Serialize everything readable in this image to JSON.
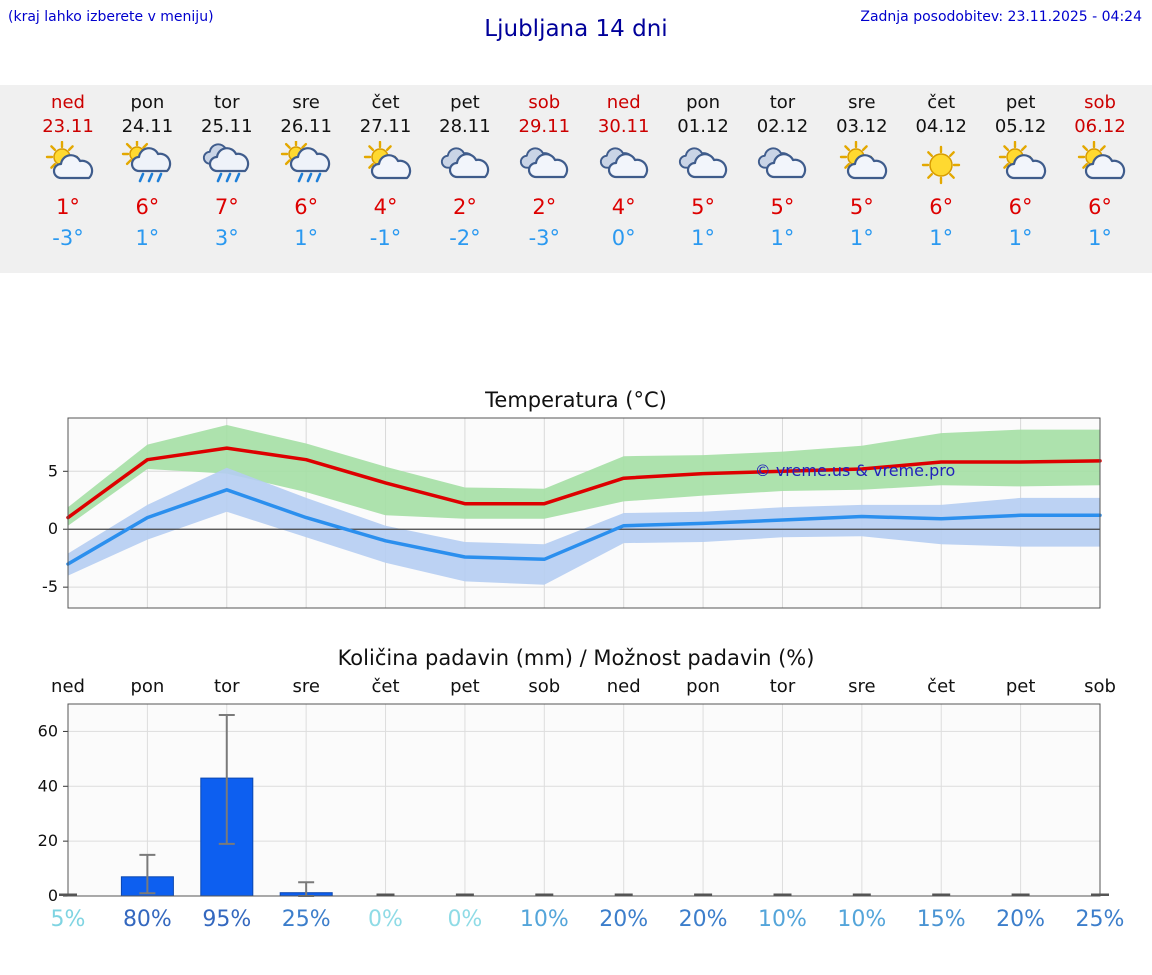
{
  "header": {
    "note": "(kraj lahko izberete v meniju)",
    "title": "Ljubljana 14 dni",
    "updated": "Zadnja posodobitev: 23.11.2025 - 04:24"
  },
  "colors": {
    "weekend": "#cc0000",
    "weekday": "#111111",
    "high_temp": "#dd0000",
    "low_temp": "#2b99f0",
    "header_blue": "#0000cd",
    "watermark_blue": "#2222bb"
  },
  "days": [
    {
      "name": "ned",
      "date": "23.11",
      "weekend": true,
      "icon": "sun-cloud",
      "high": "1°",
      "low": "-3°"
    },
    {
      "name": "pon",
      "date": "24.11",
      "weekend": false,
      "icon": "rain-sun",
      "high": "6°",
      "low": "1°"
    },
    {
      "name": "tor",
      "date": "25.11",
      "weekend": false,
      "icon": "rain",
      "high": "7°",
      "low": "3°"
    },
    {
      "name": "sre",
      "date": "26.11",
      "weekend": false,
      "icon": "rain-sun",
      "high": "6°",
      "low": "1°"
    },
    {
      "name": "čet",
      "date": "27.11",
      "weekend": false,
      "icon": "sun-cloud",
      "high": "4°",
      "low": "-1°"
    },
    {
      "name": "pet",
      "date": "28.11",
      "weekend": false,
      "icon": "cloudy",
      "high": "2°",
      "low": "-2°"
    },
    {
      "name": "sob",
      "date": "29.11",
      "weekend": true,
      "icon": "cloudy",
      "high": "2°",
      "low": "-3°"
    },
    {
      "name": "ned",
      "date": "30.11",
      "weekend": true,
      "icon": "cloudy",
      "high": "4°",
      "low": "0°"
    },
    {
      "name": "pon",
      "date": "01.12",
      "weekend": false,
      "icon": "cloudy",
      "high": "5°",
      "low": "1°"
    },
    {
      "name": "tor",
      "date": "02.12",
      "weekend": false,
      "icon": "cloudy",
      "high": "5°",
      "low": "1°"
    },
    {
      "name": "sre",
      "date": "03.12",
      "weekend": false,
      "icon": "sun-cloud",
      "high": "5°",
      "low": "1°"
    },
    {
      "name": "čet",
      "date": "04.12",
      "weekend": false,
      "icon": "sun",
      "high": "6°",
      "low": "1°"
    },
    {
      "name": "pet",
      "date": "05.12",
      "weekend": false,
      "icon": "sun-cloud",
      "high": "6°",
      "low": "1°"
    },
    {
      "name": "sob",
      "date": "06.12",
      "weekend": true,
      "icon": "sun-cloud",
      "high": "6°",
      "low": "1°"
    }
  ],
  "chart_data": [
    {
      "type": "line",
      "title": "Temperatura (°C)",
      "categories": [
        "ned",
        "pon",
        "tor",
        "sre",
        "čet",
        "pet",
        "sob",
        "ned",
        "pon",
        "tor",
        "sre",
        "čet",
        "pet",
        "sob"
      ],
      "ylim": [
        -6.8,
        9.6
      ],
      "yticks": [
        -5,
        0,
        5
      ],
      "grid": true,
      "watermark": "© vreme.us & vreme.pro",
      "series": [
        {
          "name": "max",
          "color": "#dd0000",
          "values": [
            1,
            6,
            7,
            6,
            4,
            2.2,
            2.2,
            4.4,
            4.8,
            5,
            5.2,
            5.8,
            5.8,
            5.9
          ]
        },
        {
          "name": "min",
          "color": "#2b8fee",
          "values": [
            -3,
            1,
            3.4,
            1,
            -1,
            -2.4,
            -2.6,
            0.3,
            0.5,
            0.8,
            1.1,
            0.9,
            1.2,
            1.2
          ]
        }
      ],
      "bands": [
        {
          "name": "max-range",
          "color": "#a4dfa4",
          "upper": [
            1.9,
            7.3,
            9.0,
            7.4,
            5.4,
            3.6,
            3.5,
            6.3,
            6.4,
            6.7,
            7.2,
            8.3,
            8.6,
            8.6
          ],
          "lower": [
            0.3,
            5.2,
            4.8,
            3.2,
            1.2,
            0.9,
            0.9,
            2.4,
            2.9,
            3.3,
            3.4,
            3.8,
            3.7,
            3.8
          ]
        },
        {
          "name": "min-range",
          "color": "#b5cdf2",
          "upper": [
            -2.1,
            2.1,
            5.3,
            2.7,
            0.3,
            -1.1,
            -1.3,
            1.4,
            1.5,
            1.9,
            2.1,
            2.1,
            2.7,
            2.7
          ],
          "lower": [
            -4,
            -0.9,
            1.5,
            -0.7,
            -2.9,
            -4.5,
            -4.8,
            -1.2,
            -1.1,
            -0.7,
            -0.6,
            -1.3,
            -1.5,
            -1.5
          ]
        }
      ]
    },
    {
      "type": "bar",
      "title": "Količina padavin (mm) / Možnost padavin (%)",
      "categories": [
        "ned",
        "pon",
        "tor",
        "sre",
        "čet",
        "pet",
        "sob",
        "ned",
        "pon",
        "tor",
        "sre",
        "čet",
        "pet",
        "sob"
      ],
      "ylim": [
        0,
        70
      ],
      "yticks": [
        0,
        20,
        40,
        60
      ],
      "bar_color": "#0d5ff0",
      "values": [
        0,
        7,
        43,
        1.2,
        0,
        0,
        0,
        0,
        0,
        0,
        0,
        0,
        0,
        0
      ],
      "error_bars": [
        {
          "index": 1,
          "low": 1,
          "high": 15
        },
        {
          "index": 2,
          "low": 19,
          "high": 66
        },
        {
          "index": 3,
          "low": 0,
          "high": 5
        }
      ],
      "probabilities": [
        {
          "label": "5%",
          "color": "#7fd4e2"
        },
        {
          "label": "80%",
          "color": "#3468bf"
        },
        {
          "label": "95%",
          "color": "#3468bf"
        },
        {
          "label": "25%",
          "color": "#3c7ecb"
        },
        {
          "label": "0%",
          "color": "#8fdbe6"
        },
        {
          "label": "0%",
          "color": "#8fdbe6"
        },
        {
          "label": "10%",
          "color": "#54a5da"
        },
        {
          "label": "20%",
          "color": "#3c7ecb"
        },
        {
          "label": "20%",
          "color": "#3c7ecb"
        },
        {
          "label": "10%",
          "color": "#54a5da"
        },
        {
          "label": "10%",
          "color": "#54a5da"
        },
        {
          "label": "15%",
          "color": "#4a94d3"
        },
        {
          "label": "20%",
          "color": "#3c7ecb"
        },
        {
          "label": "25%",
          "color": "#3c7ecb"
        }
      ]
    }
  ]
}
